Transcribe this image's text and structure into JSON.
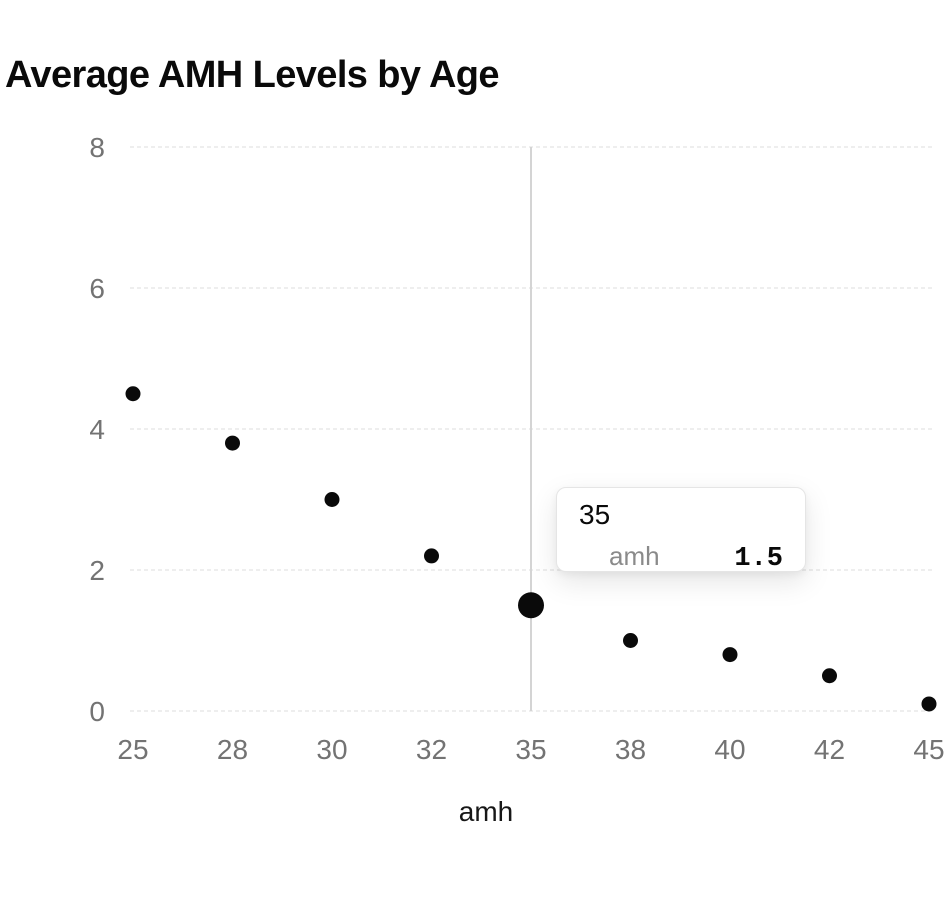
{
  "colors": {
    "title": "#0a0a0a",
    "tick_label": "#737373",
    "grid_line": "#e8e8e8",
    "cursor_line": "#d4d4d4",
    "point": "#0a0a0a",
    "tooltip_border": "#e5e5e5",
    "tooltip_bg": "#ffffff",
    "tooltip_muted": "#8a8a8a",
    "axis_label": "#171717"
  },
  "chart_data": {
    "type": "scatter",
    "title": "Average AMH Levels by Age",
    "xlabel": "amh",
    "ylabel": "",
    "series_name": "amh",
    "x": [
      25,
      28,
      30,
      32,
      35,
      38,
      40,
      42,
      45
    ],
    "y": [
      4.5,
      3.8,
      3.0,
      2.2,
      1.5,
      1.0,
      0.8,
      0.5,
      0.1
    ],
    "xticks": [
      "25",
      "28",
      "30",
      "32",
      "35",
      "38",
      "40",
      "42",
      "45"
    ],
    "yticks": [
      0,
      2,
      4,
      6,
      8
    ],
    "ylim": [
      0,
      8
    ],
    "x_scale": "point",
    "grid": "horizontal-dashed",
    "legend": "none",
    "active_point": {
      "x": 35,
      "y": 1.5
    }
  },
  "tooltip": {
    "title": "35",
    "label": "amh",
    "value": "1.5"
  }
}
